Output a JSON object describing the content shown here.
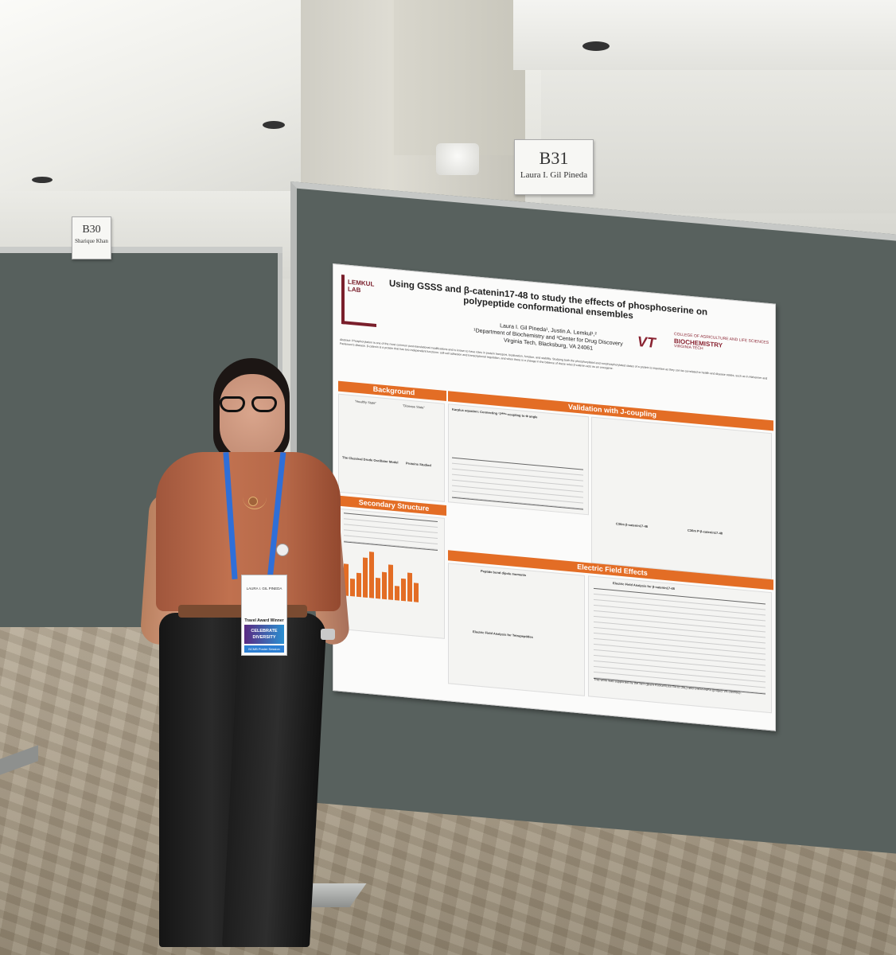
{
  "signs": {
    "b31": {
      "code": "B31",
      "name": "Laura I. Gil Pineda"
    },
    "b30": {
      "code": "B30",
      "name": "Sharique Khan"
    }
  },
  "poster": {
    "title": "Using GSSS and β-catenin17-48 to study the effects of phosphoserine on polypeptide conformational ensembles",
    "authors": "Laura I. Gil Pineda¹, Justin A. Lemkul¹,²",
    "affiliation": "¹Department of Biochemistry and ²Center for Drug Discovery",
    "institution": "Virginia Tech, Blacksburg, VA 24061",
    "lab_logo": "LEMKUL LAB",
    "vt_logo": "VT",
    "college": "COLLEGE OF AGRICULTURE AND LIFE SCIENCES",
    "department": "BIOCHEMISTRY",
    "university": "VIRGINIA TECH",
    "abstract": "Abstract: Phosphorylation is one of the most common post-translational modifications and is known to have roles in protein transport, localization, function, and stability. Studying both the phosphorylated and nonphosphorylated states of a protein is important as they can be correlated to health and disease states, such as in Alzheimer and Parkinson's disease. β-catenin is a protein that has two independent functions: cell-cell adhesion and transcriptional regulation, and when there is a change in the balance of these roles β-catenin acts as an oncogene.",
    "sections": {
      "background": "Background",
      "validation": "Validation with J-coupling",
      "secondary": "Secondary Structure",
      "efield": "Electric Field Effects"
    },
    "labels": {
      "healthy": "\"Healthy State\"",
      "disease": "\"Disease State\"",
      "drude_model": "The Classical Drude Oscillator Model",
      "proteins": "Proteins Studied",
      "karplus": "Karplus equation: Connecting ³Jᴴᴺᴴᵃ-coupling to Φ angle",
      "c36m": "C36m β-catenin17-48",
      "c36m_p": "C36m P-β-catenin17-48",
      "dipole": "Peptide bond dipole moments",
      "efa_tetra": "Electric Field Analysis for Tetrapeptides",
      "efa_bcat": "Electric Field Analysis for β-catenin17-48",
      "funding": "This work was supported by the NIH (grant R35GM133754 to JAL) and USDA-NIFA (project VA-160092)."
    }
  },
  "badge": {
    "name": "LAURA I. GIL PINEDA",
    "award": "Travel Award Winner",
    "program": "CELEBRATE DIVERSITY",
    "session": "BCMB Poster Session"
  }
}
